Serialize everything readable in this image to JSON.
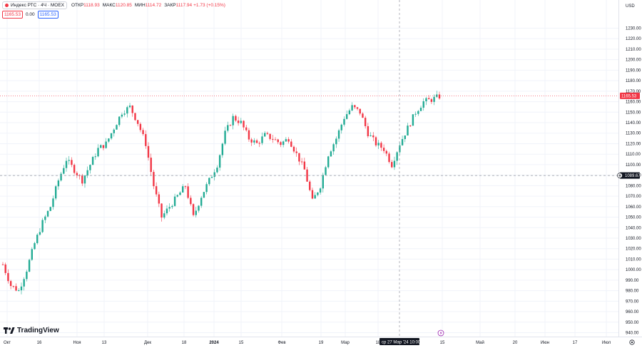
{
  "header": {
    "symbol": "Индекс РТС · 4Ч · MOEX",
    "open_label": "ОТКР",
    "open": "1118.93",
    "high_label": "МАКС",
    "high": "1120.85",
    "low_label": "МИН",
    "low": "1114.72",
    "close_label": "ЗАКР",
    "close": "1117.94",
    "change": "+1.73 (+0.15%)",
    "sell_price": "1165.53",
    "spread": "0.00",
    "buy_price": "1165.53"
  },
  "branding": {
    "logo_text": "TradingView"
  },
  "colors": {
    "up": "#22ab94",
    "down": "#f23645",
    "accent": "#2962ff",
    "crosshair_label": "#131722"
  },
  "price_axis": {
    "currency": "USD",
    "ticks": [
      "940.00",
      "950.00",
      "960.00",
      "970.00",
      "980.00",
      "990.00",
      "1000.00",
      "1010.00",
      "1020.00",
      "1030.00",
      "1040.00",
      "1050.00",
      "1060.00",
      "1070.00",
      "1080.00",
      "1090.00",
      "1100.00",
      "1110.00",
      "1120.00",
      "1130.00",
      "1140.00",
      "1150.00",
      "1160.00",
      "1170.00",
      "1180.00",
      "1190.00",
      "1200.00",
      "1210.00",
      "1220.00",
      "1230.00"
    ]
  },
  "time_axis": {
    "ticks": [
      "Окт",
      "16",
      "Ноя",
      "13",
      "Дек",
      "18",
      "2024",
      "15",
      "Фев",
      "19",
      "Мар",
      "18",
      "15",
      "Май",
      "20",
      "Июн",
      "17",
      "Июл"
    ]
  },
  "crosshair": {
    "price_label": "1089.67",
    "time_label": "ср 27 Мар '24  10:00"
  },
  "last_price_label": "1165.53",
  "chart_data": {
    "type": "line",
    "subtype": "candlestick",
    "x": [
      "2023-10-02",
      "2023-10-05",
      "2023-10-09",
      "2023-10-12",
      "2023-10-16",
      "2023-10-19",
      "2023-10-23",
      "2023-10-26",
      "2023-10-30",
      "2023-11-02",
      "2023-11-06",
      "2023-11-09",
      "2023-11-13",
      "2023-11-16",
      "2023-11-20",
      "2023-11-23",
      "2023-11-27",
      "2023-11-30",
      "2023-12-04",
      "2023-12-07",
      "2023-12-11",
      "2023-12-14",
      "2023-12-18",
      "2023-12-21",
      "2023-12-25",
      "2023-12-28",
      "2024-01-04",
      "2024-01-08",
      "2024-01-11",
      "2024-01-15",
      "2024-01-18",
      "2024-01-22",
      "2024-01-25",
      "2024-01-29",
      "2024-02-01",
      "2024-02-05",
      "2024-02-08",
      "2024-02-12",
      "2024-02-15",
      "2024-02-19",
      "2024-02-22",
      "2024-02-26",
      "2024-02-29",
      "2024-03-04",
      "2024-03-07",
      "2024-03-11",
      "2024-03-14",
      "2024-03-18",
      "2024-03-21",
      "2024-03-25",
      "2024-03-28",
      "2024-04-01",
      "2024-04-04",
      "2024-04-08",
      "2024-04-11",
      "2024-04-15"
    ],
    "y": [
      1005,
      985,
      980,
      1000,
      1025,
      1045,
      1060,
      1085,
      1105,
      1095,
      1085,
      1100,
      1115,
      1120,
      1135,
      1150,
      1155,
      1140,
      1120,
      1080,
      1050,
      1060,
      1070,
      1080,
      1050,
      1070,
      1085,
      1100,
      1130,
      1145,
      1140,
      1125,
      1120,
      1128,
      1125,
      1120,
      1125,
      1110,
      1095,
      1065,
      1080,
      1110,
      1125,
      1145,
      1155,
      1150,
      1130,
      1120,
      1115,
      1100,
      1120,
      1135,
      1150,
      1160,
      1162,
      1165
    ],
    "ylim": [
      940,
      1237
    ],
    "xlabel": "",
    "ylabel": "USD",
    "grid": true,
    "legend": "top-left",
    "last_value": 1165.53
  }
}
